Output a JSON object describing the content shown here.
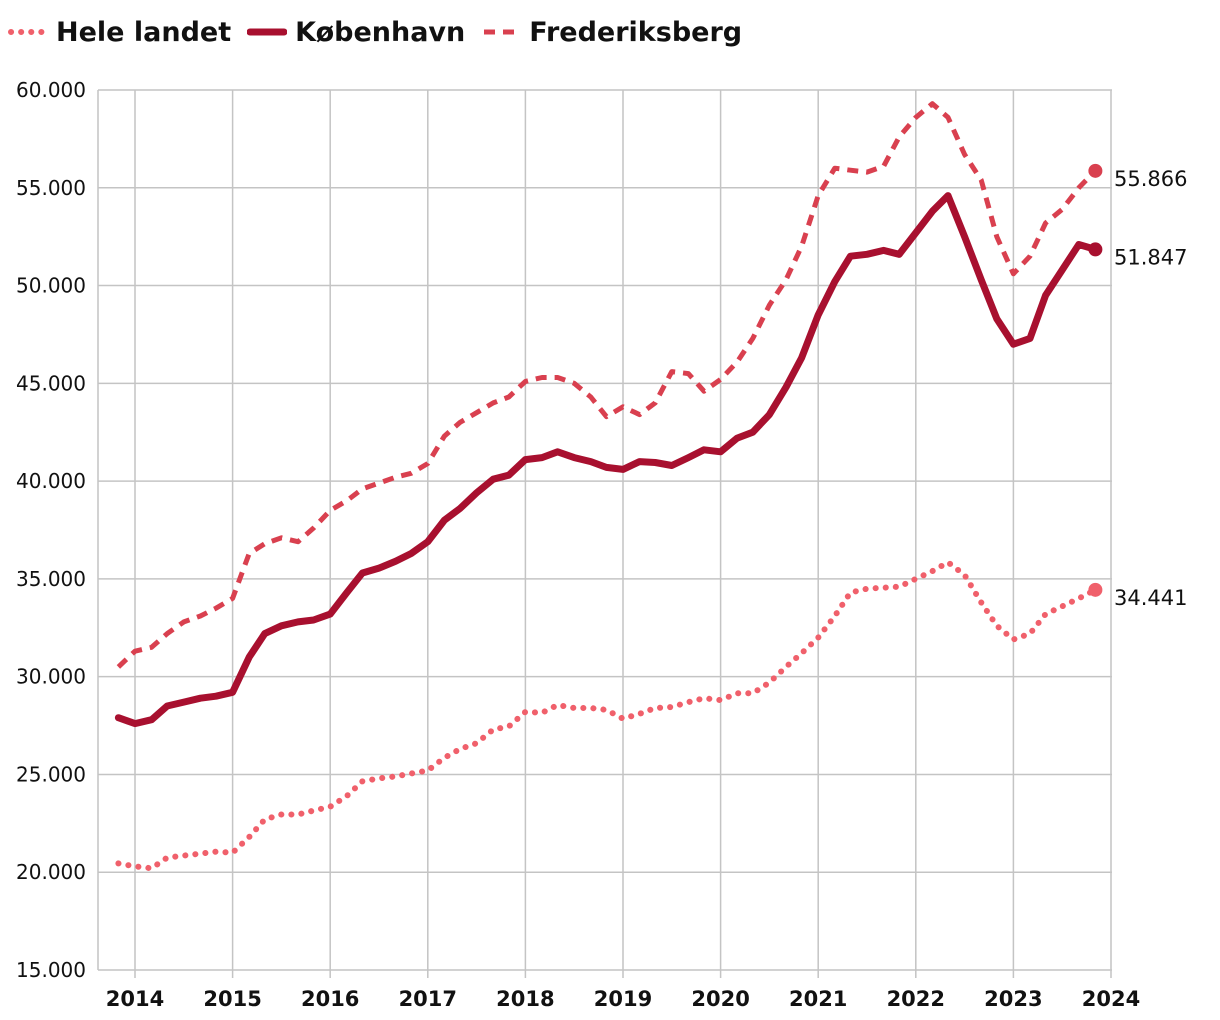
{
  "chart_data": {
    "type": "line",
    "title": "",
    "xlabel": "",
    "ylabel": "",
    "ylim": [
      15000,
      60000
    ],
    "xlim": [
      2014,
      2024
    ],
    "x_ticks": [
      "2014",
      "2015",
      "2016",
      "2017",
      "2018",
      "2019",
      "2020",
      "2021",
      "2022",
      "2023",
      "2024"
    ],
    "y_ticks": [
      "15.000",
      "20.000",
      "25.000",
      "30.000",
      "35.000",
      "40.000",
      "45.000",
      "50.000",
      "55.000",
      "60.000"
    ],
    "grid": true,
    "legend_position": "top-left",
    "colors": {
      "hele_landet": "#f0606b",
      "kobenhavn": "#a8102f",
      "frederiksberg": "#d9404f"
    },
    "series": [
      {
        "name": "Hele landet",
        "key": "hele_landet",
        "style": "dotted",
        "end_label": "34.441",
        "points": [
          [
            2013.83,
            20450
          ],
          [
            2014.0,
            20300
          ],
          [
            2014.17,
            20200
          ],
          [
            2014.33,
            20750
          ],
          [
            2014.5,
            20850
          ],
          [
            2014.67,
            20950
          ],
          [
            2014.83,
            21050
          ],
          [
            2015.0,
            21000
          ],
          [
            2015.17,
            21800
          ],
          [
            2015.33,
            22700
          ],
          [
            2015.5,
            22950
          ],
          [
            2015.67,
            22950
          ],
          [
            2015.83,
            23150
          ],
          [
            2016.0,
            23350
          ],
          [
            2016.17,
            23900
          ],
          [
            2016.33,
            24650
          ],
          [
            2016.5,
            24800
          ],
          [
            2016.67,
            24900
          ],
          [
            2016.83,
            25050
          ],
          [
            2017.0,
            25200
          ],
          [
            2017.17,
            25850
          ],
          [
            2017.33,
            26300
          ],
          [
            2017.5,
            26600
          ],
          [
            2017.67,
            27300
          ],
          [
            2017.83,
            27450
          ],
          [
            2018.0,
            28200
          ],
          [
            2018.17,
            28150
          ],
          [
            2018.33,
            28550
          ],
          [
            2018.5,
            28400
          ],
          [
            2018.67,
            28400
          ],
          [
            2018.83,
            28300
          ],
          [
            2019.0,
            27850
          ],
          [
            2019.17,
            28100
          ],
          [
            2019.33,
            28400
          ],
          [
            2019.5,
            28450
          ],
          [
            2019.67,
            28700
          ],
          [
            2019.83,
            28900
          ],
          [
            2020.0,
            28800
          ],
          [
            2020.17,
            29150
          ],
          [
            2020.33,
            29150
          ],
          [
            2020.5,
            29700
          ],
          [
            2020.67,
            30500
          ],
          [
            2020.83,
            31200
          ],
          [
            2021.0,
            32000
          ],
          [
            2021.17,
            33100
          ],
          [
            2021.33,
            34300
          ],
          [
            2021.5,
            34500
          ],
          [
            2021.67,
            34550
          ],
          [
            2021.83,
            34600
          ],
          [
            2022.0,
            35000
          ],
          [
            2022.17,
            35400
          ],
          [
            2022.33,
            35850
          ],
          [
            2022.5,
            35200
          ],
          [
            2022.67,
            33800
          ],
          [
            2022.83,
            32600
          ],
          [
            2023.0,
            31900
          ],
          [
            2023.17,
            32200
          ],
          [
            2023.33,
            33200
          ],
          [
            2023.5,
            33600
          ],
          [
            2023.67,
            34000
          ],
          [
            2023.84,
            34441
          ]
        ]
      },
      {
        "name": "København",
        "key": "kobenhavn",
        "style": "solid",
        "end_label": "51.847",
        "points": [
          [
            2013.83,
            27900
          ],
          [
            2014.0,
            27600
          ],
          [
            2014.17,
            27800
          ],
          [
            2014.33,
            28500
          ],
          [
            2014.5,
            28700
          ],
          [
            2014.67,
            28900
          ],
          [
            2014.83,
            29000
          ],
          [
            2015.0,
            29200
          ],
          [
            2015.17,
            31000
          ],
          [
            2015.33,
            32200
          ],
          [
            2015.5,
            32600
          ],
          [
            2015.67,
            32800
          ],
          [
            2015.83,
            32900
          ],
          [
            2016.0,
            33200
          ],
          [
            2016.17,
            34300
          ],
          [
            2016.33,
            35300
          ],
          [
            2016.5,
            35550
          ],
          [
            2016.67,
            35900
          ],
          [
            2016.83,
            36300
          ],
          [
            2017.0,
            36900
          ],
          [
            2017.17,
            38000
          ],
          [
            2017.33,
            38600
          ],
          [
            2017.5,
            39400
          ],
          [
            2017.67,
            40100
          ],
          [
            2017.83,
            40300
          ],
          [
            2018.0,
            41100
          ],
          [
            2018.17,
            41200
          ],
          [
            2018.33,
            41500
          ],
          [
            2018.5,
            41200
          ],
          [
            2018.67,
            41000
          ],
          [
            2018.83,
            40700
          ],
          [
            2019.0,
            40600
          ],
          [
            2019.17,
            41000
          ],
          [
            2019.33,
            40950
          ],
          [
            2019.5,
            40800
          ],
          [
            2019.67,
            41200
          ],
          [
            2019.83,
            41600
          ],
          [
            2020.0,
            41500
          ],
          [
            2020.17,
            42200
          ],
          [
            2020.33,
            42500
          ],
          [
            2020.5,
            43400
          ],
          [
            2020.67,
            44800
          ],
          [
            2020.83,
            46300
          ],
          [
            2021.0,
            48500
          ],
          [
            2021.17,
            50200
          ],
          [
            2021.33,
            51500
          ],
          [
            2021.5,
            51600
          ],
          [
            2021.67,
            51800
          ],
          [
            2021.83,
            51600
          ],
          [
            2022.0,
            52700
          ],
          [
            2022.17,
            53800
          ],
          [
            2022.33,
            54600
          ],
          [
            2022.5,
            52500
          ],
          [
            2022.67,
            50300
          ],
          [
            2022.83,
            48300
          ],
          [
            2023.0,
            47000
          ],
          [
            2023.17,
            47300
          ],
          [
            2023.33,
            49500
          ],
          [
            2023.5,
            50800
          ],
          [
            2023.67,
            52100
          ],
          [
            2023.84,
            51847
          ]
        ]
      },
      {
        "name": "Frederiksberg",
        "key": "frederiksberg",
        "style": "dashed",
        "end_label": "55.866",
        "points": [
          [
            2013.83,
            30500
          ],
          [
            2014.0,
            31300
          ],
          [
            2014.17,
            31500
          ],
          [
            2014.33,
            32200
          ],
          [
            2014.5,
            32800
          ],
          [
            2014.67,
            33100
          ],
          [
            2014.83,
            33500
          ],
          [
            2015.0,
            34000
          ],
          [
            2015.17,
            36300
          ],
          [
            2015.33,
            36800
          ],
          [
            2015.5,
            37100
          ],
          [
            2015.67,
            36900
          ],
          [
            2015.83,
            37600
          ],
          [
            2016.0,
            38500
          ],
          [
            2016.17,
            39000
          ],
          [
            2016.33,
            39600
          ],
          [
            2016.5,
            39900
          ],
          [
            2016.67,
            40200
          ],
          [
            2016.83,
            40400
          ],
          [
            2017.0,
            40900
          ],
          [
            2017.17,
            42300
          ],
          [
            2017.33,
            43000
          ],
          [
            2017.5,
            43500
          ],
          [
            2017.67,
            44000
          ],
          [
            2017.83,
            44300
          ],
          [
            2018.0,
            45100
          ],
          [
            2018.17,
            45300
          ],
          [
            2018.33,
            45300
          ],
          [
            2018.5,
            45000
          ],
          [
            2018.67,
            44300
          ],
          [
            2018.83,
            43300
          ],
          [
            2019.0,
            43800
          ],
          [
            2019.17,
            43400
          ],
          [
            2019.33,
            44000
          ],
          [
            2019.5,
            45600
          ],
          [
            2019.67,
            45500
          ],
          [
            2019.83,
            44600
          ],
          [
            2020.0,
            45200
          ],
          [
            2020.17,
            46100
          ],
          [
            2020.33,
            47300
          ],
          [
            2020.5,
            49000
          ],
          [
            2020.67,
            50300
          ],
          [
            2020.83,
            52000
          ],
          [
            2021.0,
            54600
          ],
          [
            2021.17,
            56000
          ],
          [
            2021.33,
            55900
          ],
          [
            2021.5,
            55800
          ],
          [
            2021.67,
            56100
          ],
          [
            2021.83,
            57600
          ],
          [
            2022.0,
            58600
          ],
          [
            2022.17,
            59300
          ],
          [
            2022.33,
            58600
          ],
          [
            2022.5,
            56700
          ],
          [
            2022.67,
            55400
          ],
          [
            2022.83,
            52500
          ],
          [
            2023.0,
            50600
          ],
          [
            2023.17,
            51500
          ],
          [
            2023.33,
            53200
          ],
          [
            2023.5,
            53900
          ],
          [
            2023.67,
            55000
          ],
          [
            2023.84,
            55866
          ]
        ]
      }
    ]
  }
}
